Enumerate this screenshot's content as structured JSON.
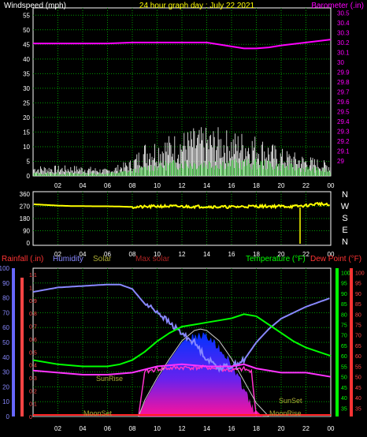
{
  "colors": {
    "background": "#000000",
    "windspeed": "#ffffff",
    "wind_avg": "#33cc33",
    "barometer": "#ff00ff",
    "direction": "#ffff00",
    "rainfall": "#ff3333",
    "humidity": "#8888ff",
    "solar": "#aaaa33",
    "max_solar": "#aa2222",
    "temperature": "#00ff00",
    "dewpoint": "#ff3333"
  },
  "chart_data": [
    {
      "type": "line",
      "title": "24 hour graph day : July 22 2021",
      "ylabel": "Windspeed (mph)",
      "y2label": "Barometer (.in)",
      "ylim": [
        0,
        57.5
      ],
      "y2lim": [
        28.85,
        30.55
      ],
      "yticks": [
        "55",
        "50",
        "45",
        "40",
        "35",
        "30",
        "25",
        "20",
        "15",
        "10",
        "5",
        "0"
      ],
      "y2ticks": [
        "30.5",
        "30.4",
        "30.3",
        "30.2",
        "30.1",
        "30",
        "29.9",
        "29.8",
        "29.7",
        "29.6",
        "29.5",
        "29.4",
        "29.3",
        "29.2",
        "29.1",
        "29"
      ],
      "xticks": [
        "02",
        "04",
        "06",
        "08",
        "10",
        "12",
        "14",
        "16",
        "18",
        "20",
        "22",
        "00"
      ],
      "barometer": {
        "x": [
          0,
          2,
          4,
          6,
          8,
          10,
          12,
          14,
          16,
          17,
          18,
          19,
          20,
          22,
          24
        ],
        "y": [
          30.19,
          30.19,
          30.19,
          30.19,
          30.2,
          30.2,
          30.2,
          30.2,
          30.16,
          30.14,
          30.14,
          30.15,
          30.17,
          30.2,
          30.23
        ]
      },
      "windspeed_envelope": {
        "x": [
          0,
          2,
          4,
          6,
          8,
          9,
          10,
          12,
          13,
          14,
          15,
          16,
          17,
          18,
          19,
          20,
          21,
          22,
          23,
          24
        ],
        "y": [
          3,
          3,
          3,
          2,
          5,
          10,
          11,
          13,
          14,
          14,
          14,
          13,
          13,
          12,
          10,
          8,
          7,
          6,
          5,
          4
        ]
      },
      "wind_avg_envelope": {
        "x": [
          0,
          2,
          4,
          6,
          8,
          10,
          12,
          14,
          16,
          18,
          20,
          22,
          24
        ],
        "y": [
          1,
          1,
          1,
          1,
          2,
          4,
          5,
          5,
          5,
          5,
          4,
          3,
          2
        ]
      }
    },
    {
      "type": "line",
      "yticks": [
        "360",
        "270",
        "180",
        "90",
        "0"
      ],
      "ylim": [
        0,
        360
      ],
      "right_labels": [
        "N",
        "W",
        "S",
        "E",
        "N"
      ],
      "xticks": [
        "02",
        "04",
        "06",
        "08",
        "10",
        "12",
        "14",
        "16",
        "18",
        "20",
        "22",
        "00"
      ],
      "direction": {
        "x": [
          0,
          1,
          2,
          3,
          4,
          5,
          6,
          7,
          8,
          9,
          10,
          11,
          12,
          13,
          14,
          15,
          16,
          17,
          18,
          19,
          20,
          21,
          22,
          23,
          24
        ],
        "y": [
          285,
          280,
          275,
          272,
          271,
          270,
          270,
          268,
          265,
          265,
          270,
          270,
          268,
          268,
          268,
          265,
          265,
          268,
          270,
          270,
          270,
          268,
          275,
          290,
          275
        ]
      }
    },
    {
      "type": "line",
      "legend": [
        "Rainfall (.in)",
        "Humidity",
        "Solar",
        "Max solar",
        "Temperature (°F)",
        "Dew Point (°F)"
      ],
      "y1ticks": [
        "100",
        "90",
        "80",
        "70",
        "60",
        "50",
        "40",
        "30",
        "20",
        "10",
        "0"
      ],
      "y2ticks": [
        "1.1",
        "1",
        "0.9",
        "0.8",
        "0.7",
        "0.6",
        "0.5",
        "0.4",
        "0.3",
        "0.2",
        "0.1",
        "0"
      ],
      "y3ticks": [
        "100",
        "95",
        "90",
        "85",
        "80",
        "75",
        "70",
        "65",
        "60",
        "55",
        "50",
        "45",
        "40",
        "35"
      ],
      "y4ticks": [
        "100",
        "95",
        "90",
        "85",
        "80",
        "75",
        "70",
        "65",
        "60",
        "55",
        "50",
        "45",
        "40",
        "35"
      ],
      "y3lim": [
        31,
        102
      ],
      "xticks": [
        "02",
        "04",
        "06",
        "08",
        "10",
        "12",
        "14",
        "16",
        "18",
        "20",
        "22",
        "00"
      ],
      "annotations": [
        "SunRise",
        "SunSet",
        "MoonSet",
        "MoonRise"
      ],
      "humidity": {
        "x": [
          0,
          2,
          4,
          6,
          7,
          8,
          9,
          10,
          11,
          12,
          13,
          14,
          15,
          16,
          17,
          18,
          19,
          20,
          22,
          23,
          24
        ],
        "y": [
          84,
          87,
          88,
          89,
          89,
          86,
          76,
          71,
          63,
          56,
          50,
          39,
          33,
          34,
          38,
          50,
          59,
          66,
          74,
          77,
          80
        ]
      },
      "temperature": {
        "x": [
          0,
          2,
          4,
          6,
          7,
          8,
          9,
          10,
          11,
          12,
          13,
          14,
          15,
          16,
          17,
          18,
          19,
          20,
          21,
          22,
          23,
          24
        ],
        "y": [
          58,
          56,
          55,
          55,
          56,
          58,
          62,
          67,
          71,
          74,
          75,
          76,
          77,
          78,
          80,
          79,
          75,
          71,
          67,
          64,
          62,
          60
        ]
      },
      "dewpoint": {
        "x": [
          0,
          2,
          4,
          6,
          8,
          10,
          12,
          14,
          16,
          17,
          18,
          20,
          22,
          24
        ],
        "y": [
          53,
          52,
          51,
          51,
          52,
          55,
          56,
          55,
          55,
          56,
          54,
          52,
          52,
          50
        ]
      },
      "solar": {
        "x": [
          0,
          8.5,
          9,
          10,
          11,
          12,
          13,
          13.5,
          14,
          15,
          16,
          17,
          17.5,
          18,
          18.5,
          19,
          24
        ],
        "y": [
          0,
          0,
          10,
          25,
          38,
          50,
          57,
          58,
          57,
          50,
          38,
          22,
          12,
          4,
          0,
          0,
          0
        ]
      },
      "solar_pink": {
        "x": [
          0,
          8.5,
          9,
          10,
          12,
          14,
          16,
          17,
          17.6,
          18,
          24
        ],
        "y": [
          0,
          0,
          30,
          32,
          33,
          33,
          31,
          32,
          30,
          0,
          0
        ]
      },
      "max_solar": {
        "x": [
          0,
          8.5,
          9,
          10,
          11,
          12,
          13,
          13.5,
          14,
          15,
          16,
          17,
          18,
          19,
          24
        ],
        "y": [
          0,
          0,
          11,
          26,
          39,
          51,
          58,
          59,
          58,
          51,
          39,
          24,
          9,
          0,
          0
        ]
      }
    }
  ],
  "labels": {
    "p3_rainfall": "Rainfall (.in)",
    "p3_humidity": "Humidity",
    "p3_solar": "Solar",
    "p3_maxsolar": "Max solar",
    "p3_temp": "Temperature (°F)",
    "p3_dew": "Dew Point (°F)",
    "sunrise": "SunRise",
    "sunset": "SunSet",
    "moonset": "MoonSet",
    "moonrise": "MoonRise"
  }
}
